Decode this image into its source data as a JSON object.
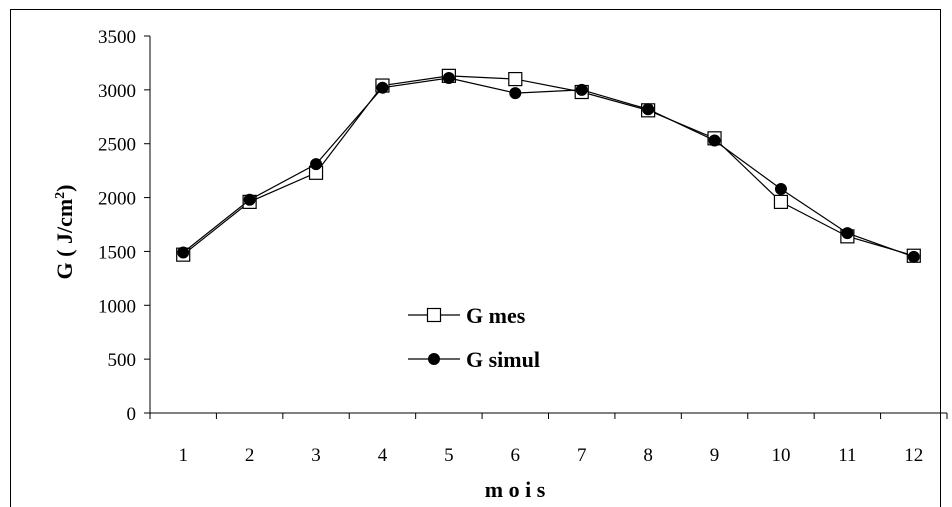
{
  "chart_data": {
    "type": "line",
    "xlabel": "m o i s",
    "ylabel_parts": {
      "main": "G ( J/cm",
      "sup": "2",
      "close": ")"
    },
    "x": [
      1,
      2,
      3,
      4,
      5,
      6,
      7,
      8,
      9,
      10,
      11,
      12
    ],
    "ylim": [
      0,
      3500
    ],
    "yticks": [
      0,
      500,
      1000,
      1500,
      2000,
      2500,
      3000,
      3500
    ],
    "grid": false,
    "legend_position": "lower-middle",
    "series": [
      {
        "name": "G mes",
        "marker": "open-square",
        "color": "#000000",
        "values": [
          1470,
          1960,
          2230,
          3040,
          3130,
          3100,
          2980,
          2810,
          2550,
          1960,
          1640,
          1460
        ]
      },
      {
        "name": "G simul",
        "marker": "filled-circle",
        "color": "#000000",
        "values": [
          1490,
          1980,
          2310,
          3020,
          3110,
          2970,
          3000,
          2820,
          2530,
          2080,
          1670,
          1450
        ]
      }
    ]
  }
}
